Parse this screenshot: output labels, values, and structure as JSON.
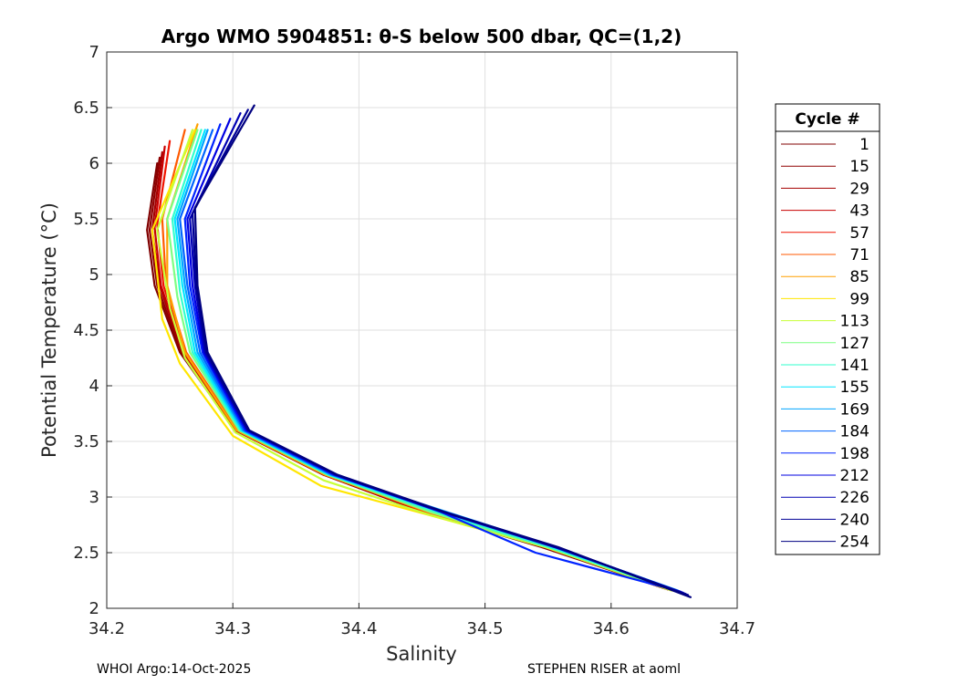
{
  "chart_data": {
    "type": "line",
    "title": "Argo WMO 5904851: θ-S below 500 dbar,  QC=(1,2)",
    "xlabel": "Salinity",
    "ylabel": "Potential Temperature (°C)",
    "xlim": [
      34.2,
      34.7
    ],
    "ylim": [
      2,
      7
    ],
    "x_ticks": [
      "34.2",
      "34.3",
      "34.4",
      "34.5",
      "34.6",
      "34.7"
    ],
    "y_ticks": [
      "2",
      "2.5",
      "3",
      "3.5",
      "4",
      "4.5",
      "5",
      "5.5",
      "6",
      "6.5",
      "7"
    ],
    "grid": true,
    "legend": {
      "title": "Cycle #",
      "placement": "outside-right"
    },
    "series": [
      {
        "name": "1",
        "color": "#800000",
        "x": [
          34.24,
          34.232,
          34.238,
          34.258,
          34.302,
          34.372,
          34.455,
          34.545,
          34.642
        ],
        "y": [
          6.0,
          5.4,
          4.9,
          4.3,
          3.6,
          3.2,
          2.85,
          2.55,
          2.18
        ]
      },
      {
        "name": "15",
        "color": "#8f0000",
        "x": [
          34.242,
          34.234,
          34.24,
          34.259,
          34.302,
          34.372,
          34.456,
          34.546,
          34.644
        ],
        "y": [
          6.05,
          5.4,
          4.9,
          4.3,
          3.6,
          3.2,
          2.85,
          2.55,
          2.18
        ]
      },
      {
        "name": "29",
        "color": "#a50000",
        "x": [
          34.244,
          34.236,
          34.242,
          34.26,
          34.303,
          34.373,
          34.456,
          34.547,
          34.645
        ],
        "y": [
          6.1,
          5.4,
          4.9,
          4.3,
          3.6,
          3.2,
          2.85,
          2.55,
          2.17
        ]
      },
      {
        "name": "43",
        "color": "#c80000",
        "x": [
          34.246,
          34.238,
          34.243,
          34.261,
          34.303,
          34.373,
          34.457,
          34.548,
          34.646
        ],
        "y": [
          6.15,
          5.42,
          4.9,
          4.3,
          3.6,
          3.2,
          2.85,
          2.55,
          2.17
        ]
      },
      {
        "name": "57",
        "color": "#f01400",
        "x": [
          34.25,
          34.24,
          34.245,
          34.262,
          34.304,
          34.374,
          34.457,
          34.548,
          34.647
        ],
        "y": [
          6.2,
          5.45,
          4.9,
          4.3,
          3.6,
          3.2,
          2.85,
          2.55,
          2.17
        ]
      },
      {
        "name": "71",
        "color": "#ff5a00",
        "x": [
          34.262,
          34.244,
          34.247,
          34.263,
          34.304,
          34.374,
          34.458,
          34.549,
          34.648
        ],
        "y": [
          6.3,
          5.5,
          4.9,
          4.3,
          3.6,
          3.2,
          2.85,
          2.55,
          2.16
        ]
      },
      {
        "name": "85",
        "color": "#ffa000",
        "x": [
          34.272,
          34.248,
          34.248,
          34.262,
          34.303,
          34.373,
          34.457,
          34.549,
          34.649
        ],
        "y": [
          6.35,
          5.5,
          4.9,
          4.3,
          3.6,
          3.2,
          2.86,
          2.55,
          2.16
        ]
      },
      {
        "name": "99",
        "color": "#ffe600",
        "x": [
          34.27,
          34.236,
          34.244,
          34.258,
          34.3,
          34.37,
          34.455,
          34.548,
          34.648
        ],
        "y": [
          6.3,
          5.4,
          4.6,
          4.2,
          3.55,
          3.1,
          2.84,
          2.55,
          2.16
        ]
      },
      {
        "name": "113",
        "color": "#c8ff37",
        "x": [
          34.268,
          34.24,
          34.25,
          34.262,
          34.302,
          34.372,
          34.456,
          34.548,
          34.648
        ],
        "y": [
          6.3,
          5.4,
          4.7,
          4.25,
          3.58,
          3.15,
          2.84,
          2.55,
          2.16
        ]
      },
      {
        "name": "127",
        "color": "#7dff82",
        "x": [
          34.272,
          34.248,
          34.256,
          34.266,
          34.305,
          34.375,
          34.458,
          34.55,
          34.65
        ],
        "y": [
          6.3,
          5.5,
          4.8,
          4.3,
          3.6,
          3.2,
          2.86,
          2.55,
          2.16
        ]
      },
      {
        "name": "141",
        "color": "#32ffcd",
        "x": [
          34.275,
          34.252,
          34.258,
          34.268,
          34.306,
          34.376,
          34.46,
          34.551,
          34.651
        ],
        "y": [
          6.3,
          5.5,
          4.85,
          4.3,
          3.6,
          3.2,
          2.87,
          2.55,
          2.16
        ]
      },
      {
        "name": "155",
        "color": "#00e6ff",
        "x": [
          34.278,
          34.254,
          34.26,
          34.27,
          34.307,
          34.377,
          34.462,
          34.552,
          34.652
        ],
        "y": [
          6.3,
          5.5,
          4.9,
          4.3,
          3.6,
          3.2,
          2.88,
          2.56,
          2.16
        ]
      },
      {
        "name": "169",
        "color": "#00a5ff",
        "x": [
          34.28,
          34.256,
          34.262,
          34.272,
          34.308,
          34.378,
          34.463,
          34.553,
          34.653
        ],
        "y": [
          6.3,
          5.5,
          4.9,
          4.3,
          3.6,
          3.2,
          2.89,
          2.56,
          2.16
        ]
      },
      {
        "name": "184",
        "color": "#0064ff",
        "x": [
          34.284,
          34.258,
          34.264,
          34.274,
          34.309,
          34.379,
          34.464,
          34.554,
          34.654
        ],
        "y": [
          6.3,
          5.5,
          4.9,
          4.3,
          3.6,
          3.2,
          2.88,
          2.56,
          2.15
        ]
      },
      {
        "name": "198",
        "color": "#0023ff",
        "x": [
          34.29,
          34.262,
          34.266,
          34.276,
          34.31,
          34.38,
          34.464,
          34.54,
          34.655
        ],
        "y": [
          6.35,
          5.5,
          4.9,
          4.3,
          3.6,
          3.2,
          2.87,
          2.5,
          2.15
        ]
      },
      {
        "name": "212",
        "color": "#0000e1",
        "x": [
          34.298,
          34.264,
          34.268,
          34.277,
          34.311,
          34.381,
          34.465,
          34.555,
          34.657
        ],
        "y": [
          6.4,
          5.5,
          4.9,
          4.3,
          3.6,
          3.2,
          2.87,
          2.55,
          2.14
        ]
      },
      {
        "name": "226",
        "color": "#0000b4",
        "x": [
          34.306,
          34.266,
          34.27,
          34.278,
          34.312,
          34.382,
          34.466,
          34.556,
          34.659
        ],
        "y": [
          6.45,
          5.5,
          4.9,
          4.3,
          3.6,
          3.2,
          2.87,
          2.55,
          2.13
        ]
      },
      {
        "name": "240",
        "color": "#000096",
        "x": [
          34.312,
          34.268,
          34.271,
          34.279,
          34.312,
          34.382,
          34.466,
          34.557,
          34.661
        ],
        "y": [
          6.48,
          5.55,
          4.9,
          4.3,
          3.6,
          3.2,
          2.87,
          2.55,
          2.12
        ]
      },
      {
        "name": "254",
        "color": "#000080",
        "x": [
          34.317,
          34.27,
          34.272,
          34.28,
          34.313,
          34.383,
          34.467,
          34.558,
          34.663
        ],
        "y": [
          6.52,
          5.6,
          4.9,
          4.3,
          3.6,
          3.2,
          2.87,
          2.55,
          2.1
        ]
      }
    ]
  },
  "footer": {
    "left": "WHOI Argo:14-Oct-2025",
    "right": "STEPHEN RISER at aoml"
  }
}
